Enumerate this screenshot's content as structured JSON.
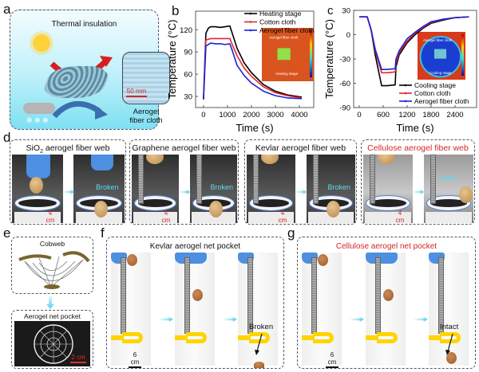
{
  "panels": {
    "a": {
      "label": "a",
      "title": "Thermal insulation",
      "scale_bar": "50 mm",
      "caption_line1": "Aerogel",
      "caption_line2": "fiber cloth"
    },
    "b": {
      "label": "b",
      "inset_top": "Aerogel fiber cloth",
      "inset_bottom": "Heating stage"
    },
    "c": {
      "label": "c",
      "inset_top": "Aerogel fiber cloth",
      "inset_bottom": "Cooling stage"
    },
    "d": {
      "label": "d",
      "boxes": [
        {
          "title_pre": "SiO",
          "title_sub": "2",
          "title_post": " aerogel fiber web",
          "scale_bar": "4 cm",
          "annotation": "Broken",
          "color": "#111111"
        },
        {
          "title": "Graphene aerogel fiber web",
          "scale_bar": "4 cm",
          "annotation": "Broken",
          "color": "#111111"
        },
        {
          "title": "Kevlar aerogel fiber web",
          "scale_bar": "4 cm",
          "annotation": "Broken",
          "color": "#111111"
        },
        {
          "title": "Cellulose aerogel fiber web",
          "scale_bar": "4 cm",
          "annotation": "Intact",
          "color": "#d4252a"
        }
      ]
    },
    "e": {
      "label": "e",
      "top_title": "Cobweb",
      "bottom_title": "Aerogel net pocket",
      "scale_bar": "2 cm"
    },
    "f": {
      "label": "f",
      "title": "Kevlar aerogel net pocket",
      "scale_bar": "6 cm",
      "annotation": "Broken"
    },
    "g": {
      "label": "g",
      "title": "Cellulose aerogel net pocket",
      "scale_bar": "6 cm",
      "annotation": "Intact"
    }
  },
  "chart_data": [
    {
      "type": "line",
      "panel": "b",
      "title": "",
      "xlabel": "Time (s)",
      "ylabel": "Temperature (°C)",
      "xlim": [
        -330,
        4600
      ],
      "ylim": [
        15,
        145
      ],
      "xticks": [
        0,
        1000,
        2000,
        3000,
        4000
      ],
      "yticks": [
        30,
        60,
        90,
        120
      ],
      "legend": "top-right",
      "x": [
        0,
        100,
        200,
        300,
        500,
        700,
        900,
        1100,
        1200,
        1400,
        1700,
        2000,
        2500,
        3000,
        3500,
        4100
      ],
      "series": [
        {
          "name": "Heating stage",
          "color": "#000000",
          "values": [
            26,
            115,
            122,
            124,
            124,
            123,
            124,
            125,
            115,
            95,
            75,
            62,
            46,
            37,
            32,
            29
          ]
        },
        {
          "name": "Cotton cloth",
          "color": "#e8232a",
          "values": [
            26,
            106,
            107,
            108,
            108,
            108,
            108,
            108,
            100,
            85,
            68,
            57,
            43,
            35,
            31,
            28
          ]
        },
        {
          "name": "Aerogel fiber cloth",
          "color": "#1a22d8",
          "values": [
            26,
            98,
            100,
            102,
            101,
            101,
            100,
            101,
            92,
            72,
            58,
            48,
            37,
            31,
            28,
            27
          ]
        }
      ]
    },
    {
      "type": "line",
      "panel": "c",
      "title": "",
      "xlabel": "Time (s)",
      "ylabel": "Temperature (°C)",
      "xlim": [
        -140,
        2940
      ],
      "ylim": [
        -90,
        30
      ],
      "xticks": [
        0,
        600,
        1200,
        1800,
        2400
      ],
      "yticks": [
        -90,
        -60,
        -30,
        0,
        30
      ],
      "legend": "bottom-right",
      "x": [
        0,
        200,
        300,
        400,
        560,
        700,
        900,
        920,
        1000,
        1200,
        1400,
        1600,
        1800,
        2100,
        2400,
        2750
      ],
      "series": [
        {
          "name": "Cooling stage",
          "color": "#000000",
          "values": [
            22,
            22,
            5,
            -25,
            -63,
            -63,
            -62,
            -40,
            -25,
            -10,
            0,
            8,
            14,
            18,
            21,
            22
          ]
        },
        {
          "name": "Cotton cloth",
          "color": "#e8232a",
          "values": [
            22,
            22,
            5,
            -20,
            -47,
            -47,
            -46,
            -35,
            -22,
            -8,
            2,
            9,
            15,
            19,
            21,
            22
          ]
        },
        {
          "name": "Aerogel fiber cloth",
          "color": "#1a22d8",
          "values": [
            22,
            22,
            6,
            -18,
            -43,
            -43,
            -42,
            -30,
            -20,
            -5,
            3,
            10,
            16,
            19,
            21,
            22
          ]
        }
      ]
    }
  ]
}
